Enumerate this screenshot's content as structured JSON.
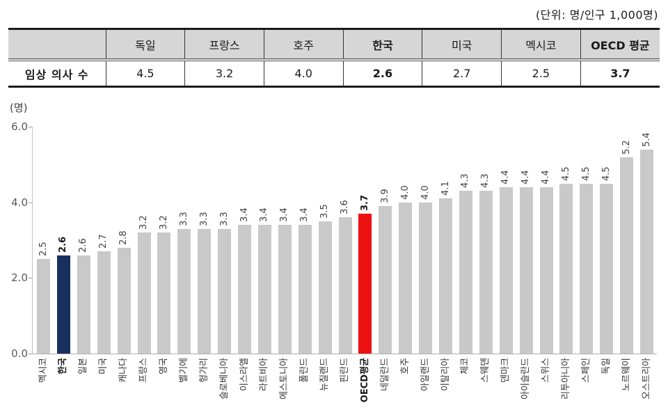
{
  "unit_note": "(단위: 명/인구 1,000명)",
  "table": {
    "row_header": "임상 의사 수",
    "columns": [
      "독일",
      "프랑스",
      "호주",
      "한국",
      "미국",
      "멕시코",
      "OECD 평균"
    ],
    "values": [
      "4.5",
      "3.2",
      "4.0",
      "2.6",
      "2.7",
      "2.5",
      "3.7"
    ],
    "emphasized_columns": [
      3,
      6
    ],
    "header_bg_color": "#d6d6d6"
  },
  "chart_data": {
    "type": "bar",
    "title": "",
    "xlabel": "",
    "ylabel": "(명)",
    "ylim": [
      0,
      6
    ],
    "yticks": [
      "0.0",
      "2.0",
      "4.0",
      "6.0"
    ],
    "grid": false,
    "legend": "none",
    "categories": [
      "멕시코",
      "한국",
      "일본",
      "미국",
      "캐나다",
      "프랑스",
      "영국",
      "벨기에",
      "헝가리",
      "슬로베니아",
      "이스라엘",
      "라트비아",
      "에스토니아",
      "폴란드",
      "뉴질랜드",
      "핀란드",
      "OECD평균",
      "네덜란드",
      "호주",
      "아일랜드",
      "이탈리아",
      "체코",
      "스웨덴",
      "덴마크",
      "아이슬란드",
      "스위스",
      "리투아니아",
      "스페인",
      "독일",
      "노르웨이",
      "오스트리아"
    ],
    "values": [
      2.5,
      2.6,
      2.6,
      2.7,
      2.8,
      3.2,
      3.2,
      3.3,
      3.3,
      3.3,
      3.4,
      3.4,
      3.4,
      3.4,
      3.5,
      3.6,
      3.7,
      3.9,
      4.0,
      4.0,
      4.1,
      4.3,
      4.3,
      4.4,
      4.4,
      4.4,
      4.5,
      4.5,
      4.5,
      5.2,
      5.4
    ],
    "default_bar_color": "#c9c9c9",
    "highlights": [
      {
        "category": "한국",
        "color": "#17305d"
      },
      {
        "category": "OECD평균",
        "color": "#ee1111"
      }
    ],
    "emphasized_categories": [
      "한국",
      "OECD평균"
    ]
  }
}
